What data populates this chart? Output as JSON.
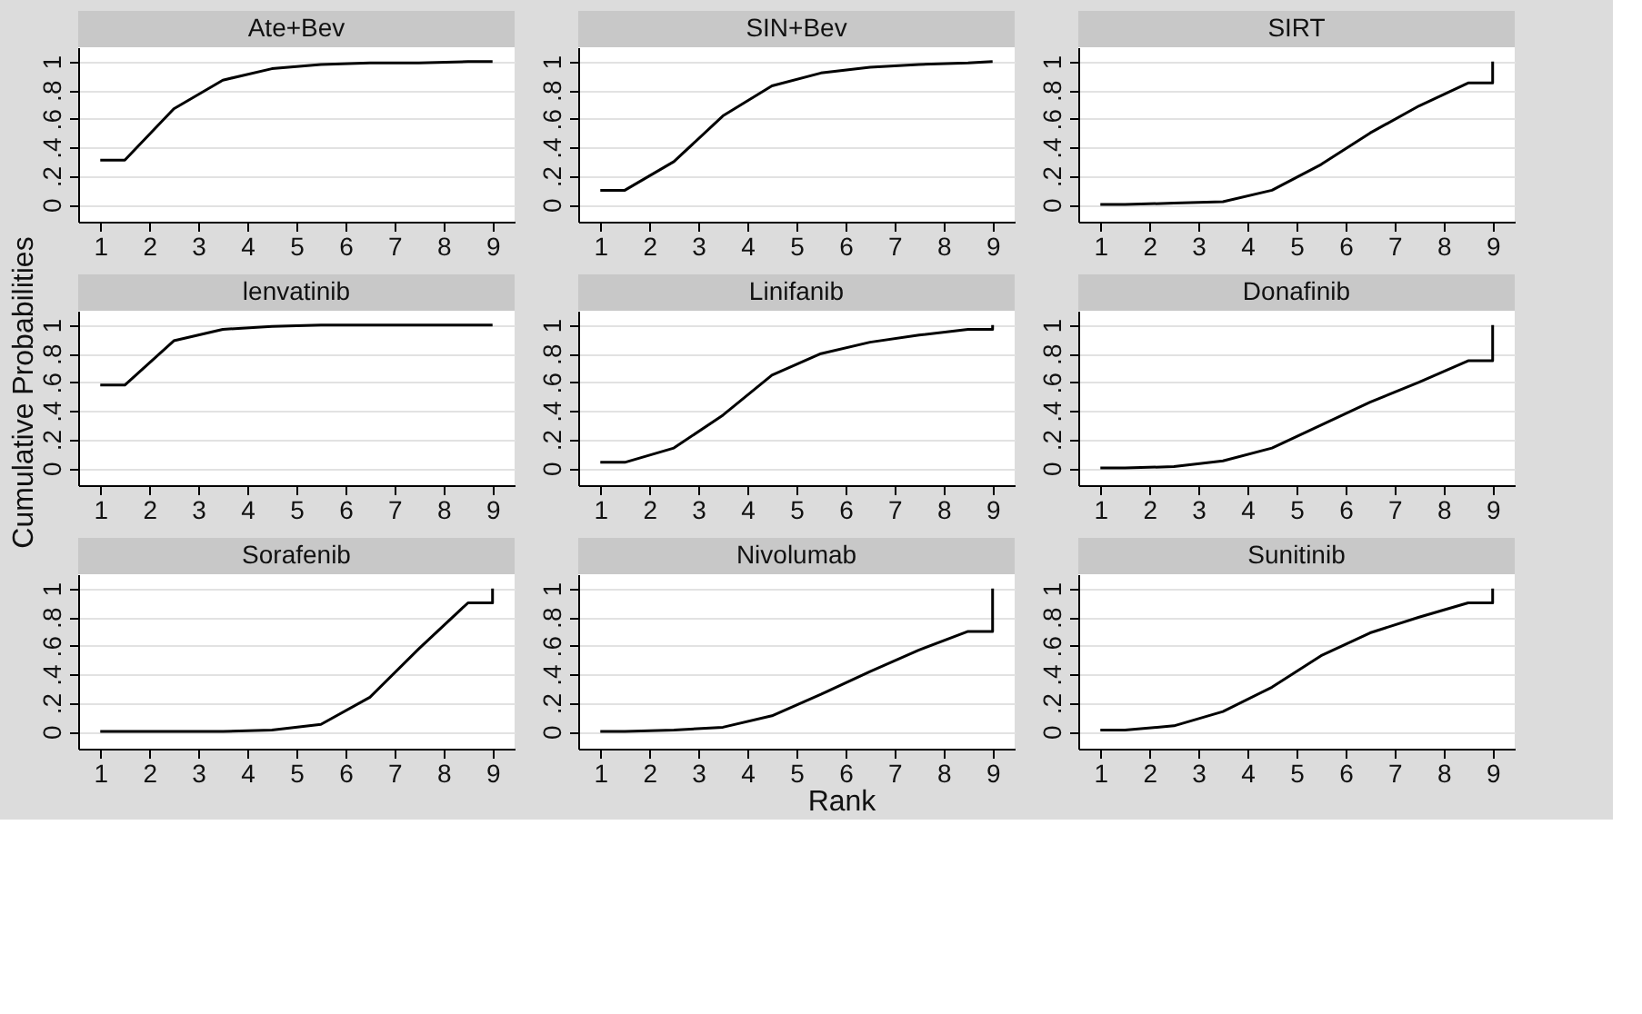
{
  "chart_data": [
    {
      "type": "line",
      "title": "Ate+Bev",
      "x": [
        1,
        1.5,
        2.5,
        3.5,
        4.5,
        5.5,
        6.5,
        7.5,
        8.5,
        9,
        9
      ],
      "values": [
        0.31,
        0.31,
        0.67,
        0.87,
        0.95,
        0.98,
        0.99,
        0.99,
        1,
        1,
        1
      ],
      "color": "#000000",
      "xlim": [
        0.55,
        9.45
      ],
      "ylim": [
        -0.12,
        1.1
      ],
      "xticks": [
        1,
        2,
        3,
        4,
        5,
        6,
        7,
        8,
        9
      ],
      "yticks": [
        0,
        {
          "value": 0.2,
          "label": ".2"
        },
        {
          "value": 0.4,
          "label": ".4"
        },
        {
          "value": 0.6,
          "label": ".6"
        },
        {
          "value": 0.8,
          "label": ".8"
        },
        1
      ],
      "grid": "y",
      "marker": "none",
      "line_style": "solid"
    },
    {
      "type": "line",
      "title": "SIN+Bev",
      "x": [
        1,
        1.5,
        2.5,
        3.5,
        4.5,
        5.5,
        6.5,
        7.5,
        8.5,
        9,
        9
      ],
      "values": [
        0.1,
        0.1,
        0.3,
        0.62,
        0.83,
        0.92,
        0.96,
        0.98,
        0.99,
        1,
        1
      ],
      "color": "#000000",
      "xlim": [
        0.55,
        9.45
      ],
      "ylim": [
        -0.12,
        1.1
      ],
      "xticks": [
        1,
        2,
        3,
        4,
        5,
        6,
        7,
        8,
        9
      ],
      "yticks": [
        0,
        {
          "value": 0.2,
          "label": ".2"
        },
        {
          "value": 0.4,
          "label": ".4"
        },
        {
          "value": 0.6,
          "label": ".6"
        },
        {
          "value": 0.8,
          "label": ".8"
        },
        1
      ],
      "grid": "y",
      "marker": "none",
      "line_style": "solid"
    },
    {
      "type": "line",
      "title": "SIRT",
      "x": [
        1,
        1.5,
        2.5,
        3.5,
        4.5,
        5.5,
        6.5,
        7.5,
        8.5,
        9,
        9
      ],
      "values": [
        0,
        0,
        0.01,
        0.02,
        0.1,
        0.28,
        0.5,
        0.69,
        0.85,
        0.85,
        1
      ],
      "color": "#000000",
      "xlim": [
        0.55,
        9.45
      ],
      "ylim": [
        -0.12,
        1.1
      ],
      "xticks": [
        1,
        2,
        3,
        4,
        5,
        6,
        7,
        8,
        9
      ],
      "yticks": [
        0,
        {
          "value": 0.2,
          "label": ".2"
        },
        {
          "value": 0.4,
          "label": ".4"
        },
        {
          "value": 0.6,
          "label": ".6"
        },
        {
          "value": 0.8,
          "label": ".8"
        },
        1
      ],
      "grid": "y",
      "marker": "none",
      "line_style": "solid"
    },
    {
      "type": "line",
      "title": "lenvatinib",
      "ylabel": "Cumulative Probabilities",
      "x": [
        1,
        1.5,
        2.5,
        3.5,
        4.5,
        5.5,
        6.5,
        7.5,
        8.5,
        9,
        9
      ],
      "values": [
        0.58,
        0.58,
        0.89,
        0.97,
        0.99,
        1,
        1,
        1,
        1,
        1,
        1
      ],
      "color": "#000000",
      "xlim": [
        0.55,
        9.45
      ],
      "ylim": [
        -0.12,
        1.1
      ],
      "xticks": [
        1,
        2,
        3,
        4,
        5,
        6,
        7,
        8,
        9
      ],
      "yticks": [
        0,
        {
          "value": 0.2,
          "label": ".2"
        },
        {
          "value": 0.4,
          "label": ".4"
        },
        {
          "value": 0.6,
          "label": ".6"
        },
        {
          "value": 0.8,
          "label": ".8"
        },
        1
      ],
      "grid": "y",
      "marker": "none",
      "line_style": "solid"
    },
    {
      "type": "line",
      "title": "Linifanib",
      "x": [
        1,
        1.5,
        2.5,
        3.5,
        4.5,
        5.5,
        6.5,
        7.5,
        8.5,
        9,
        9
      ],
      "values": [
        0.04,
        0.04,
        0.14,
        0.37,
        0.65,
        0.8,
        0.88,
        0.93,
        0.97,
        0.97,
        1
      ],
      "color": "#000000",
      "xlim": [
        0.55,
        9.45
      ],
      "ylim": [
        -0.12,
        1.1
      ],
      "xticks": [
        1,
        2,
        3,
        4,
        5,
        6,
        7,
        8,
        9
      ],
      "yticks": [
        0,
        {
          "value": 0.2,
          "label": ".2"
        },
        {
          "value": 0.4,
          "label": ".4"
        },
        {
          "value": 0.6,
          "label": ".6"
        },
        {
          "value": 0.8,
          "label": ".8"
        },
        1
      ],
      "grid": "y",
      "marker": "none",
      "line_style": "solid"
    },
    {
      "type": "line",
      "title": "Donafinib",
      "x": [
        1,
        1.5,
        2.5,
        3.5,
        4.5,
        5.5,
        6.5,
        7.5,
        8.5,
        9,
        9
      ],
      "values": [
        0,
        0,
        0.01,
        0.05,
        0.14,
        0.3,
        0.46,
        0.6,
        0.75,
        0.75,
        1
      ],
      "color": "#000000",
      "xlim": [
        0.55,
        9.45
      ],
      "ylim": [
        -0.12,
        1.1
      ],
      "xticks": [
        1,
        2,
        3,
        4,
        5,
        6,
        7,
        8,
        9
      ],
      "yticks": [
        0,
        {
          "value": 0.2,
          "label": ".2"
        },
        {
          "value": 0.4,
          "label": ".4"
        },
        {
          "value": 0.6,
          "label": ".6"
        },
        {
          "value": 0.8,
          "label": ".8"
        },
        1
      ],
      "grid": "y",
      "marker": "none",
      "line_style": "solid"
    },
    {
      "type": "line",
      "title": "Sorafenib",
      "x": [
        1,
        1.5,
        2.5,
        3.5,
        4.5,
        5.5,
        6.5,
        7.5,
        8.5,
        9,
        9
      ],
      "values": [
        0,
        0,
        0,
        0,
        0.01,
        0.05,
        0.24,
        0.58,
        0.9,
        0.9,
        1
      ],
      "color": "#000000",
      "xlim": [
        0.55,
        9.45
      ],
      "ylim": [
        -0.12,
        1.1
      ],
      "xticks": [
        1,
        2,
        3,
        4,
        5,
        6,
        7,
        8,
        9
      ],
      "yticks": [
        0,
        {
          "value": 0.2,
          "label": ".2"
        },
        {
          "value": 0.4,
          "label": ".4"
        },
        {
          "value": 0.6,
          "label": ".6"
        },
        {
          "value": 0.8,
          "label": ".8"
        },
        1
      ],
      "grid": "y",
      "marker": "none",
      "line_style": "solid"
    },
    {
      "type": "line",
      "title": "Nivolumab",
      "xlabel": "Rank",
      "x": [
        1,
        1.5,
        2.5,
        3.5,
        4.5,
        5.5,
        6.5,
        7.5,
        8.5,
        9,
        9
      ],
      "values": [
        0,
        0,
        0.01,
        0.03,
        0.11,
        0.26,
        0.42,
        0.57,
        0.7,
        0.7,
        1
      ],
      "color": "#000000",
      "xlim": [
        0.55,
        9.45
      ],
      "ylim": [
        -0.12,
        1.1
      ],
      "xticks": [
        1,
        2,
        3,
        4,
        5,
        6,
        7,
        8,
        9
      ],
      "yticks": [
        0,
        {
          "value": 0.2,
          "label": ".2"
        },
        {
          "value": 0.4,
          "label": ".4"
        },
        {
          "value": 0.6,
          "label": ".6"
        },
        {
          "value": 0.8,
          "label": ".8"
        },
        1
      ],
      "grid": "y",
      "marker": "none",
      "line_style": "solid"
    },
    {
      "type": "line",
      "title": "Sunitinib",
      "x": [
        1,
        1.5,
        2.5,
        3.5,
        4.5,
        5.5,
        6.5,
        7.5,
        8.5,
        9,
        9
      ],
      "values": [
        0.01,
        0.01,
        0.04,
        0.14,
        0.31,
        0.53,
        0.69,
        0.8,
        0.9,
        0.9,
        1
      ],
      "color": "#000000",
      "xlim": [
        0.55,
        9.45
      ],
      "ylim": [
        -0.12,
        1.1
      ],
      "xticks": [
        1,
        2,
        3,
        4,
        5,
        6,
        7,
        8,
        9
      ],
      "yticks": [
        0,
        {
          "value": 0.2,
          "label": ".2"
        },
        {
          "value": 0.4,
          "label": ".4"
        },
        {
          "value": 0.6,
          "label": ".6"
        },
        {
          "value": 0.8,
          "label": ".8"
        },
        1
      ],
      "grid": "y",
      "marker": "none",
      "line_style": "solid"
    }
  ]
}
